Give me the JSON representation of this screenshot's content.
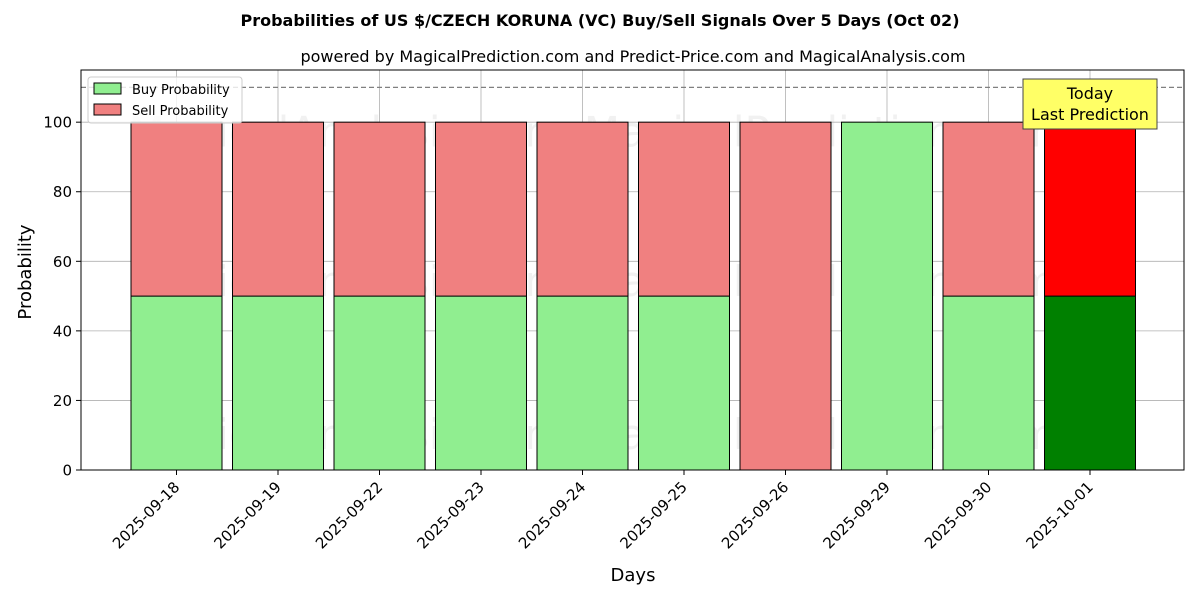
{
  "chart_data": {
    "type": "bar",
    "stacked": true,
    "title": "Probabilities of US $/CZECH KORUNA (VC) Buy/Sell Signals Over 5 Days (Oct 02)",
    "subtitle": "powered by MagicalPrediction.com and Predict-Price.com and MagicalAnalysis.com",
    "xlabel": "Days",
    "ylabel": "Probability",
    "ylim": [
      0,
      115
    ],
    "yticks": [
      0,
      20,
      40,
      60,
      80,
      100
    ],
    "reference_line": 110,
    "grid": true,
    "legend_position": "top-left",
    "categories": [
      "2025-09-18",
      "2025-09-19",
      "2025-09-22",
      "2025-09-23",
      "2025-09-24",
      "2025-09-25",
      "2025-09-26",
      "2025-09-29",
      "2025-09-30",
      "2025-10-01"
    ],
    "series": [
      {
        "name": "Buy Probability",
        "color": "#90ee90",
        "highlight_color": "#008000",
        "values": [
          50,
          50,
          50,
          50,
          50,
          50,
          0,
          100,
          50,
          50
        ]
      },
      {
        "name": "Sell Probability",
        "color": "#f08080",
        "highlight_color": "#ff0000",
        "values": [
          50,
          50,
          50,
          50,
          50,
          50,
          100,
          0,
          50,
          50
        ]
      }
    ],
    "highlight_index": 9,
    "annotation": {
      "lines": [
        "Today",
        "Last Prediction"
      ],
      "background": "#ffff66"
    },
    "watermarks": [
      "MagicalAnalysis.com",
      "MagicalPrediction.com"
    ]
  }
}
